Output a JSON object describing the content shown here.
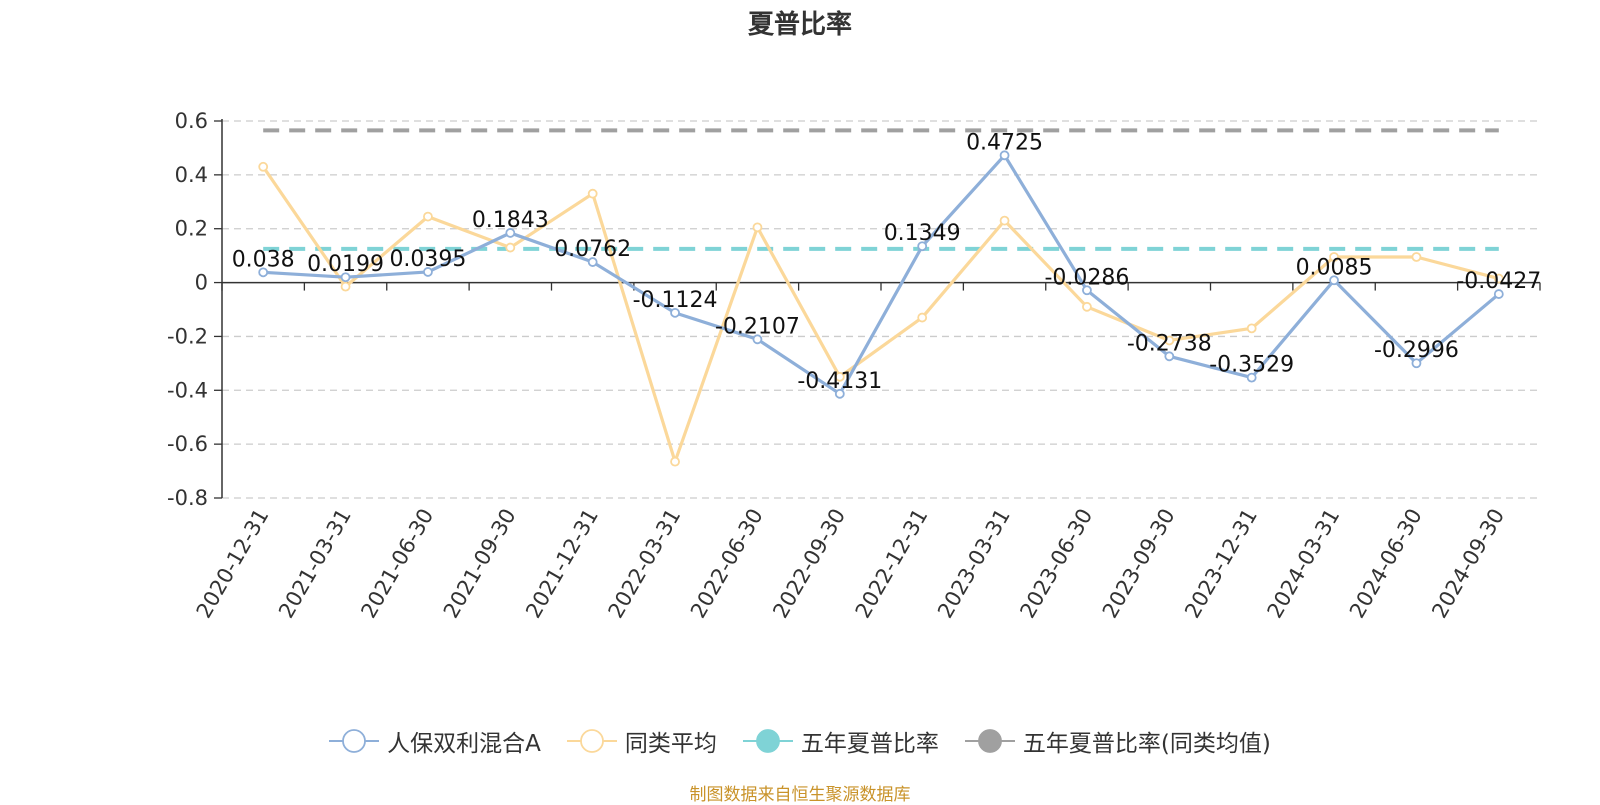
{
  "chart_data": {
    "type": "line",
    "title": "夏普比率",
    "categories": [
      "2020-12-31",
      "2021-03-31",
      "2021-06-30",
      "2021-09-30",
      "2021-12-31",
      "2022-03-31",
      "2022-06-30",
      "2022-09-30",
      "2022-12-31",
      "2023-03-31",
      "2023-06-30",
      "2023-09-30",
      "2023-12-31",
      "2024-03-31",
      "2024-06-30",
      "2024-09-30"
    ],
    "ylim": [
      -0.8,
      0.6
    ],
    "yticks": [
      "0.6",
      "0.4",
      "0.2",
      "0",
      "-0.2",
      "-0.4",
      "-0.6",
      "-0.8"
    ],
    "grid": true,
    "legend_position": "bottom",
    "series": [
      {
        "name": "人保双利混合A",
        "color": "#8eafd9",
        "values": [
          0.038,
          0.0199,
          0.0395,
          0.1843,
          0.0762,
          -0.1124,
          -0.2107,
          -0.4131,
          0.1349,
          0.4725,
          -0.0286,
          -0.2738,
          -0.3529,
          0.0085,
          -0.2996,
          -0.0427
        ],
        "labels": [
          "0.038",
          "0.0199",
          "0.0395",
          "0.1843",
          "0.0762",
          "-0.1124",
          "-0.2107",
          "-0.4131",
          "0.1349",
          "0.4725",
          "-0.0286",
          "-0.2738",
          "-0.3529",
          "0.0085",
          "-0.2996",
          "-0.0427"
        ]
      },
      {
        "name": "同类平均",
        "color": "#fbd89a",
        "values": [
          0.43,
          -0.015,
          0.245,
          0.13,
          0.33,
          -0.665,
          0.205,
          -0.35,
          -0.13,
          0.23,
          -0.09,
          -0.215,
          -0.17,
          0.095,
          0.095,
          0.015
        ]
      },
      {
        "name": "五年夏普比率",
        "color": "#7fd3d6",
        "type": "reference",
        "value": 0.125
      },
      {
        "name": "五年夏普比率(同类均值)",
        "color": "#a0a0a0",
        "type": "reference",
        "value": 0.565
      }
    ],
    "source": "制图数据来自恒生聚源数据库"
  }
}
